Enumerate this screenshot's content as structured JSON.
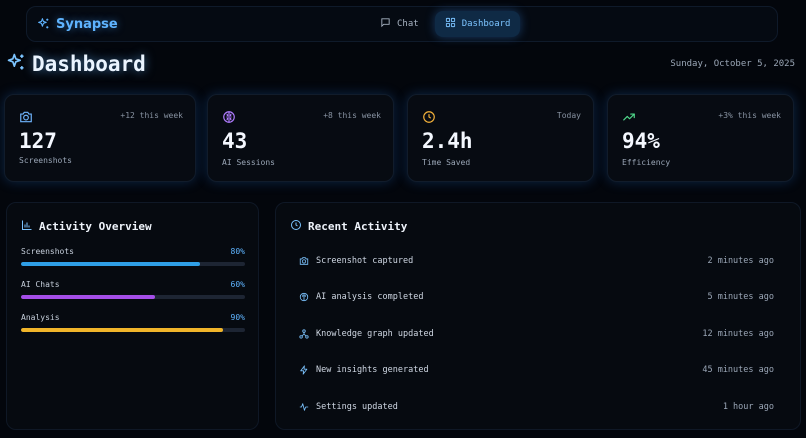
{
  "header": {
    "brand": "Synapse",
    "nav": [
      {
        "label": "Chat",
        "icon": "chat-icon",
        "active": false
      },
      {
        "label": "Dashboard",
        "icon": "dashboard-icon",
        "active": true
      }
    ]
  },
  "page": {
    "title": "Dashboard",
    "date": "Sunday, October 5, 2025"
  },
  "stats": [
    {
      "icon": "camera-icon",
      "delta": "+12 this week",
      "value": "127",
      "label": "Screenshots",
      "color": "#6fb6ff"
    },
    {
      "icon": "brain-icon",
      "delta": "+8 this week",
      "value": "43",
      "label": "AI Sessions",
      "color": "#b07cff"
    },
    {
      "icon": "clock-icon",
      "delta": "Today",
      "value": "2.4h",
      "label": "Time Saved",
      "color": "#f5b23a"
    },
    {
      "icon": "trending-up-icon",
      "delta": "+3% this week",
      "value": "94%",
      "label": "Efficiency",
      "color": "#4fd88a"
    }
  ],
  "activity_overview": {
    "title": "Activity Overview",
    "bars": [
      {
        "name": "Screenshots",
        "percent_label": "80%",
        "percent": 80,
        "color": "#2f9fe6"
      },
      {
        "name": "AI Chats",
        "percent_label": "60%",
        "percent": 60,
        "color": "#a44ee8"
      },
      {
        "name": "Analysis",
        "percent_label": "90%",
        "percent": 90,
        "color": "#f0b52a"
      }
    ]
  },
  "recent_activity": {
    "title": "Recent Activity",
    "items": [
      {
        "icon": "camera-icon",
        "text": "Screenshot captured",
        "time": "2 minutes ago"
      },
      {
        "icon": "brain-icon",
        "text": "AI analysis completed",
        "time": "5 minutes ago"
      },
      {
        "icon": "network-icon",
        "text": "Knowledge graph updated",
        "time": "12 minutes ago"
      },
      {
        "icon": "lightning-icon",
        "text": "New insights generated",
        "time": "45 minutes ago"
      },
      {
        "icon": "pulse-icon",
        "text": "Settings updated",
        "time": "1 hour ago"
      }
    ]
  }
}
